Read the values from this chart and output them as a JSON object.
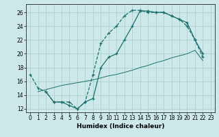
{
  "xlabel": "Humidex (Indice chaleur)",
  "bg_color": "#cce8e8",
  "line_color": "#1a6e6e",
  "xlim": [
    -0.5,
    23.5
  ],
  "ylim": [
    11.5,
    27.2
  ],
  "xticks": [
    0,
    1,
    2,
    3,
    4,
    5,
    6,
    7,
    8,
    9,
    10,
    11,
    12,
    13,
    14,
    15,
    16,
    17,
    18,
    19,
    20,
    21,
    22,
    23
  ],
  "yticks": [
    12,
    14,
    16,
    18,
    20,
    22,
    24,
    26
  ],
  "grid_color": "#aacccc",
  "line1_x": [
    0,
    1,
    2,
    3,
    4,
    5,
    6,
    7,
    8,
    9,
    10,
    11,
    12,
    13,
    14,
    15,
    16,
    17,
    18,
    19,
    20,
    21,
    22
  ],
  "line1_y": [
    17.0,
    15.0,
    14.5,
    13.0,
    13.0,
    13.0,
    12.0,
    13.0,
    17.0,
    21.5,
    23.0,
    24.0,
    25.5,
    26.3,
    26.3,
    26.0,
    26.0,
    26.0,
    25.5,
    25.0,
    24.0,
    22.0,
    19.5
  ],
  "line2_x": [
    1,
    2,
    3,
    4,
    5,
    6,
    7,
    8,
    9,
    10,
    11,
    12,
    13,
    14,
    15,
    16,
    17,
    18,
    19,
    20,
    21,
    22
  ],
  "line2_y": [
    14.5,
    14.8,
    15.1,
    15.4,
    15.6,
    15.8,
    16.0,
    16.2,
    16.5,
    16.8,
    17.0,
    17.3,
    17.6,
    18.0,
    18.3,
    18.7,
    19.0,
    19.4,
    19.7,
    20.0,
    20.5,
    19.0
  ],
  "line3_x": [
    2,
    3,
    4,
    5,
    6,
    7,
    8,
    9,
    10,
    11,
    12,
    13,
    14,
    15,
    16,
    17,
    18,
    19,
    20,
    21,
    22
  ],
  "line3_y": [
    14.5,
    13.0,
    13.0,
    12.5,
    12.0,
    13.0,
    13.5,
    18.0,
    19.5,
    20.0,
    22.0,
    24.0,
    26.2,
    26.2,
    26.0,
    26.0,
    25.5,
    25.0,
    24.5,
    22.0,
    20.0
  ]
}
